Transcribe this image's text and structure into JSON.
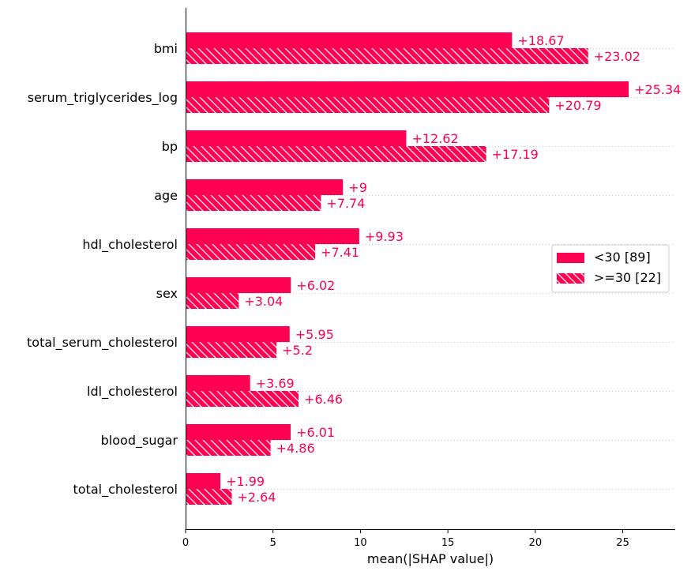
{
  "chart_data": {
    "type": "bar",
    "orientation": "horizontal",
    "categories": [
      "bmi",
      "serum_triglycerides_log",
      "bp",
      "age",
      "hdl_cholesterol",
      "sex",
      "total_serum_cholesterol",
      "ldl_cholesterol",
      "blood_sugar",
      "total_cholesterol"
    ],
    "series": [
      {
        "name": "<30 [89]",
        "values": [
          18.67,
          25.34,
          12.62,
          9,
          9.93,
          6.02,
          5.95,
          3.69,
          6.01,
          1.99
        ],
        "value_labels": [
          "+18.67",
          "+25.34",
          "+12.62",
          "+9",
          "+9.93",
          "+6.02",
          "+5.95",
          "+3.69",
          "+6.01",
          "+1.99"
        ],
        "pattern": "solid"
      },
      {
        "name": ">=30 [22]",
        "values": [
          23.02,
          20.79,
          17.19,
          7.74,
          7.41,
          3.04,
          5.2,
          6.46,
          4.86,
          2.64
        ],
        "value_labels": [
          "+23.02",
          "+20.79",
          "+17.19",
          "+7.74",
          "+7.41",
          "+3.04",
          "+5.2",
          "+6.46",
          "+4.86",
          "+2.64"
        ],
        "pattern": "hatched"
      }
    ],
    "xlabel": "mean(|SHAP value|)",
    "xlim": [
      0,
      28
    ],
    "xticks": [
      0,
      5,
      10,
      15,
      20,
      25
    ],
    "grid": "dotted horizontal lines per category",
    "legend_position": "right-center",
    "colors": {
      "bar": "#ff0052",
      "hatch": "#ffffff",
      "value_text": "#ff0052",
      "axis": "#000000",
      "grid": "#cccccc",
      "legend_border": "#cccccc"
    }
  }
}
